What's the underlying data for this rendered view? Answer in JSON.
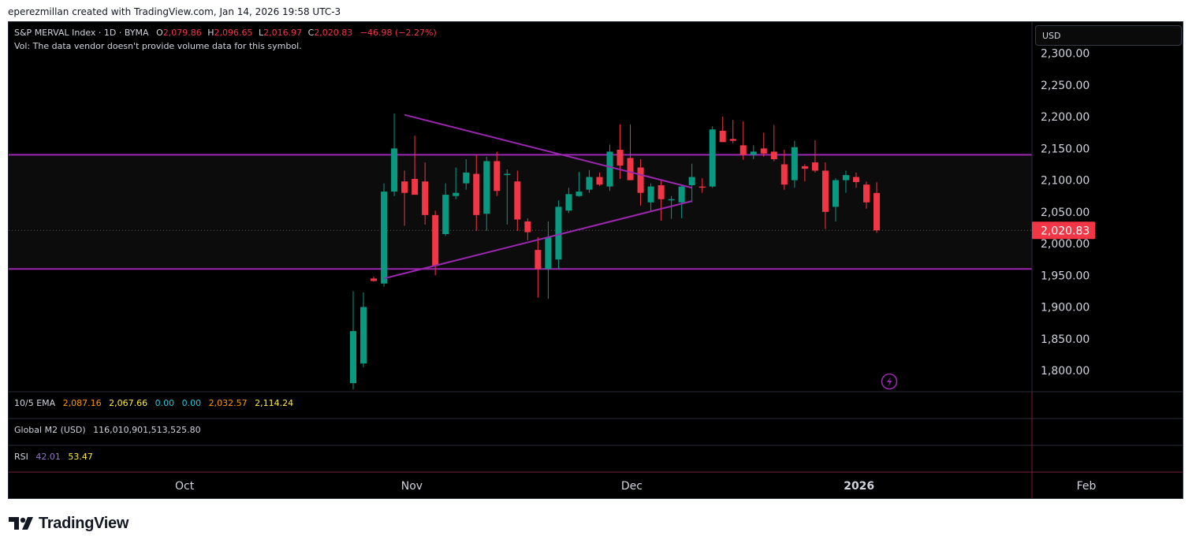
{
  "attribution": "eperezmillan created with TradingView.com, Jan 14, 2026 19:58 UTC-3",
  "legend": {
    "symbol": "S&P MERVAL Index · 1D · BYMA",
    "o_label": "O",
    "o_value": "2,079.86",
    "h_label": "H",
    "h_value": "2,096.65",
    "l_label": "L",
    "l_value": "2,016.97",
    "c_label": "C",
    "c_value": "2,020.83",
    "change": "−46.98 (−2.27%)",
    "volume_note": "Vol: The data vendor doesn't provide volume data for this symbol."
  },
  "currency_button": "USD",
  "price_label": "2,020.83",
  "indicators": {
    "ema": {
      "name": "10/5 EMA",
      "values": [
        "2,087.16",
        "2,067.66",
        "0.00",
        "0.00",
        "2,032.57",
        "2,114.24"
      ],
      "colors": [
        "#ff9800",
        "#ffeb3b",
        "#26c6da",
        "#26c6da",
        "#ff9800",
        "#ffeb3b"
      ]
    },
    "m2": {
      "name": "Global M2 (USD)",
      "value": "116,010,901,513,525.80"
    },
    "rsi": {
      "name": "RSI",
      "values": [
        "42.01",
        "53.47"
      ],
      "colors": [
        "#9575cd",
        "#ffeb3b"
      ]
    }
  },
  "time_axis": [
    {
      "label": "Oct",
      "bold": false,
      "date": "2025-10-01"
    },
    {
      "label": "Nov",
      "bold": false,
      "date": "2025-11-01"
    },
    {
      "label": "Dec",
      "bold": false,
      "date": "2025-12-01"
    },
    {
      "label": "2026",
      "bold": true,
      "date": "2026-01-01"
    },
    {
      "label": "Feb",
      "bold": false,
      "date": "2026-02-01"
    }
  ],
  "logo_text": "TradingView",
  "icons": {
    "logo": "tradingview-logo-icon",
    "lightning": "lightning-icon"
  },
  "colors": {
    "up": "#089981",
    "down": "#f23645",
    "lines": "#9c27b0",
    "background": "#000000"
  },
  "chart_data": {
    "type": "candlestick",
    "ylim": [
      1775,
      2325
    ],
    "y_ticks": [
      "1,800.00",
      "1,850.00",
      "1,900.00",
      "1,950.00",
      "2,000.00",
      "2,050.00",
      "2,100.00",
      "2,150.00",
      "2,200.00",
      "2,250.00",
      "2,300.00"
    ],
    "y_tick_values": [
      1800,
      1850,
      1900,
      1950,
      2000,
      2050,
      2100,
      2150,
      2200,
      2250,
      2300
    ],
    "last_close": 2020.83,
    "horizontal_levels": [
      2140,
      1960
    ],
    "triangle_lines": [
      {
        "from": [
          "2025-10-31",
          2203
        ],
        "to": [
          "2025-12-10",
          2088
        ]
      },
      {
        "from": [
          "2025-10-29",
          1945
        ],
        "to": [
          "2025-12-10",
          2067
        ]
      }
    ],
    "candles": [
      {
        "date": "2025-10-24",
        "o": 1780,
        "h": 1925,
        "l": 1770,
        "c": 1862
      },
      {
        "date": "2025-10-27",
        "o": 1811,
        "h": 1923,
        "l": 1805,
        "c": 1900
      },
      {
        "date": "2025-10-28",
        "o": 1945,
        "h": 1948,
        "l": 1940,
        "c": 1941
      },
      {
        "date": "2025-10-29",
        "o": 1937,
        "h": 2095,
        "l": 1932,
        "c": 2082
      },
      {
        "date": "2025-10-30",
        "o": 2082,
        "h": 2205,
        "l": 2075,
        "c": 2150
      },
      {
        "date": "2025-10-31",
        "o": 2098,
        "h": 2115,
        "l": 2028,
        "c": 2080
      },
      {
        "date": "2025-11-03",
        "o": 2102,
        "h": 2170,
        "l": 2082,
        "c": 2077
      },
      {
        "date": "2025-11-04",
        "o": 2098,
        "h": 2128,
        "l": 2030,
        "c": 2045
      },
      {
        "date": "2025-11-05",
        "o": 2045,
        "h": 2052,
        "l": 1950,
        "c": 1965
      },
      {
        "date": "2025-11-06",
        "o": 2015,
        "h": 2095,
        "l": 2012,
        "c": 2077
      },
      {
        "date": "2025-11-07",
        "o": 2075,
        "h": 2120,
        "l": 2070,
        "c": 2080
      },
      {
        "date": "2025-11-10",
        "o": 2095,
        "h": 2133,
        "l": 2085,
        "c": 2112
      },
      {
        "date": "2025-11-11",
        "o": 2110,
        "h": 2140,
        "l": 2020,
        "c": 2045
      },
      {
        "date": "2025-11-12",
        "o": 2047,
        "h": 2137,
        "l": 2020,
        "c": 2130
      },
      {
        "date": "2025-11-13",
        "o": 2130,
        "h": 2145,
        "l": 2075,
        "c": 2083
      },
      {
        "date": "2025-11-14",
        "o": 2108,
        "h": 2117,
        "l": 2030,
        "c": 2110
      },
      {
        "date": "2025-11-17",
        "o": 2098,
        "h": 2115,
        "l": 2020,
        "c": 2038
      },
      {
        "date": "2025-11-18",
        "o": 2035,
        "h": 2040,
        "l": 2005,
        "c": 2018
      },
      {
        "date": "2025-11-19",
        "o": 1990,
        "h": 2010,
        "l": 1915,
        "c": 1960
      },
      {
        "date": "2025-11-20",
        "o": 1960,
        "h": 2035,
        "l": 1913,
        "c": 2010
      },
      {
        "date": "2025-11-21",
        "o": 1975,
        "h": 2068,
        "l": 1960,
        "c": 2058
      },
      {
        "date": "2025-11-24",
        "o": 2052,
        "h": 2088,
        "l": 2048,
        "c": 2078
      },
      {
        "date": "2025-11-25",
        "o": 2075,
        "h": 2113,
        "l": 2074,
        "c": 2082
      },
      {
        "date": "2025-11-26",
        "o": 2085,
        "h": 2116,
        "l": 2080,
        "c": 2105
      },
      {
        "date": "2025-11-27",
        "o": 2105,
        "h": 2112,
        "l": 2091,
        "c": 2093
      },
      {
        "date": "2025-11-28",
        "o": 2090,
        "h": 2156,
        "l": 2083,
        "c": 2145
      },
      {
        "date": "2025-12-01",
        "o": 2148,
        "h": 2188,
        "l": 2102,
        "c": 2123
      },
      {
        "date": "2025-12-02",
        "o": 2135,
        "h": 2188,
        "l": 2100,
        "c": 2100
      },
      {
        "date": "2025-12-03",
        "o": 2120,
        "h": 2133,
        "l": 2060,
        "c": 2080
      },
      {
        "date": "2025-12-04",
        "o": 2065,
        "h": 2095,
        "l": 2050,
        "c": 2090
      },
      {
        "date": "2025-12-05",
        "o": 2092,
        "h": 2100,
        "l": 2036,
        "c": 2070
      },
      {
        "date": "2025-12-08",
        "o": 2070,
        "h": 2075,
        "l": 2039,
        "c": 2070
      },
      {
        "date": "2025-12-09",
        "o": 2065,
        "h": 2091,
        "l": 2040,
        "c": 2090
      },
      {
        "date": "2025-12-10",
        "o": 2092,
        "h": 2126,
        "l": 2065,
        "c": 2105
      },
      {
        "date": "2025-12-11",
        "o": 2090,
        "h": 2103,
        "l": 2080,
        "c": 2089
      },
      {
        "date": "2025-12-12",
        "o": 2090,
        "h": 2185,
        "l": 2088,
        "c": 2180
      },
      {
        "date": "2025-12-15",
        "o": 2178,
        "h": 2200,
        "l": 2160,
        "c": 2160
      },
      {
        "date": "2025-12-16",
        "o": 2165,
        "h": 2195,
        "l": 2158,
        "c": 2162
      },
      {
        "date": "2025-12-17",
        "o": 2155,
        "h": 2193,
        "l": 2132,
        "c": 2140
      },
      {
        "date": "2025-12-18",
        "o": 2140,
        "h": 2155,
        "l": 2133,
        "c": 2145
      },
      {
        "date": "2025-12-19",
        "o": 2150,
        "h": 2175,
        "l": 2137,
        "c": 2142
      },
      {
        "date": "2025-12-22",
        "o": 2145,
        "h": 2187,
        "l": 2130,
        "c": 2133
      },
      {
        "date": "2025-12-23",
        "o": 2125,
        "h": 2148,
        "l": 2085,
        "c": 2093
      },
      {
        "date": "2025-12-24",
        "o": 2100,
        "h": 2162,
        "l": 2088,
        "c": 2152
      },
      {
        "date": "2025-12-26",
        "o": 2122,
        "h": 2125,
        "l": 2098,
        "c": 2118
      },
      {
        "date": "2025-12-29",
        "o": 2128,
        "h": 2163,
        "l": 2112,
        "c": 2115
      },
      {
        "date": "2025-12-30",
        "o": 2115,
        "h": 2128,
        "l": 2023,
        "c": 2050
      },
      {
        "date": "2025-12-31",
        "o": 2058,
        "h": 2103,
        "l": 2035,
        "c": 2100
      },
      {
        "date": "2026-01-02",
        "o": 2100,
        "h": 2115,
        "l": 2080,
        "c": 2108
      },
      {
        "date": "2026-01-05",
        "o": 2105,
        "h": 2112,
        "l": 2088,
        "c": 2097
      },
      {
        "date": "2026-01-06",
        "o": 2093,
        "h": 2098,
        "l": 2055,
        "c": 2065
      },
      {
        "date": "2026-01-07",
        "o": 2079.86,
        "h": 2096.65,
        "l": 2016.97,
        "c": 2020.83
      }
    ]
  }
}
